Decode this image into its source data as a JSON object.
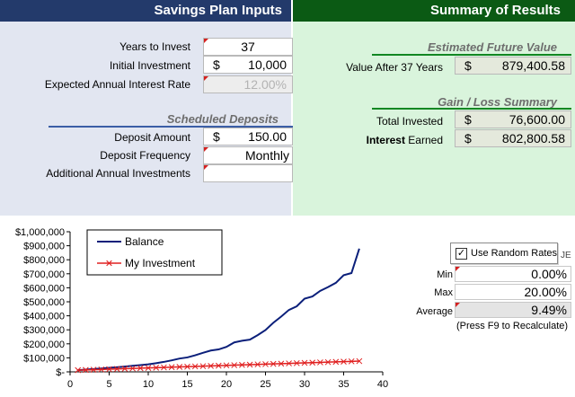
{
  "header": {
    "left_title": "Savings Plan Inputs",
    "right_title": "Summary of Results"
  },
  "inputs": {
    "years_label": "Years to Invest",
    "years_value": "37",
    "initial_label": "Initial Investment",
    "initial_currency": "$",
    "initial_value": "10,000",
    "rate_label": "Expected Annual Interest Rate",
    "rate_value": "12.00%",
    "scheduled_title": "Scheduled Deposits",
    "deposit_label": "Deposit Amount",
    "deposit_currency": "$",
    "deposit_value": "150.00",
    "frequency_label": "Deposit Frequency",
    "frequency_value": "Monthly",
    "additional_label": "Additional Annual Investments",
    "additional_value": ""
  },
  "results": {
    "future_title": "Estimated Future Value",
    "value_after_label": "Value After 37 Years",
    "value_after_currency": "$",
    "value_after": "879,400.58",
    "gainloss_title": "Gain / Loss Summary",
    "total_invested_label": "Total Invested",
    "total_invested_currency": "$",
    "total_invested": "76,600.00",
    "interest_label_bold": "Interest",
    "interest_label_rest": " Earned",
    "interest_currency": "$",
    "interest_earned": "802,800.58"
  },
  "random": {
    "checkbox_label": "Use Random Rates",
    "checked": true,
    "hidden_fragment": "JE",
    "min_label": "Min",
    "min_value": "0.00%",
    "max_label": "Max",
    "max_value": "20.00%",
    "avg_label": "Average",
    "avg_value": "9.49%",
    "note": "(Press F9 to Recalculate)"
  },
  "colors": {
    "balance": "#0b1f7a",
    "investment": "#e02020"
  },
  "chart_data": {
    "type": "line",
    "xlim": [
      0,
      40
    ],
    "ylim": [
      0,
      1000000
    ],
    "x_ticks": [
      "0",
      "5",
      "10",
      "15",
      "20",
      "25",
      "30",
      "35",
      "40"
    ],
    "y_ticks": [
      "$-",
      "$100,000",
      "$200,000",
      "$300,000",
      "$400,000",
      "$500,000",
      "$600,000",
      "$700,000",
      "$800,000",
      "$900,000",
      "$1,000,000"
    ],
    "legend_position": "top-left",
    "x": [
      1,
      2,
      3,
      4,
      5,
      6,
      7,
      8,
      9,
      10,
      11,
      12,
      13,
      14,
      15,
      16,
      17,
      18,
      19,
      20,
      21,
      22,
      23,
      24,
      25,
      26,
      27,
      28,
      29,
      30,
      31,
      32,
      33,
      34,
      35,
      36,
      37
    ],
    "series": [
      {
        "name": "Balance",
        "values": [
          12000,
          16000,
          20000,
          24000,
          29000,
          33000,
          38000,
          43000,
          48000,
          54000,
          62000,
          71000,
          82000,
          95000,
          103000,
          118000,
          136000,
          152000,
          160000,
          178000,
          210000,
          222000,
          230000,
          262000,
          298000,
          350000,
          394000,
          442000,
          468000,
          522000,
          538000,
          578000,
          605000,
          635000,
          690000,
          705000,
          879400
        ]
      },
      {
        "name": "My Investment",
        "values": [
          11800,
          13600,
          15400,
          17200,
          19000,
          20800,
          22600,
          24400,
          26200,
          28000,
          29800,
          31600,
          33400,
          35200,
          37000,
          38800,
          40600,
          42400,
          44200,
          46000,
          47800,
          49600,
          51400,
          53200,
          55000,
          56800,
          58600,
          60400,
          62200,
          64000,
          65800,
          67600,
          69400,
          71200,
          73000,
          74800,
          76600
        ]
      }
    ]
  }
}
